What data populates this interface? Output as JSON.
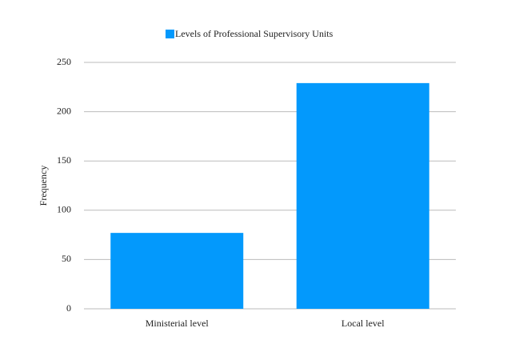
{
  "chart_data": {
    "type": "bar",
    "y_label": "Frequency",
    "categories": [
      "Ministerial level",
      "Local level"
    ],
    "series": [
      {
        "name": "Levels of Professional Supervisory Units",
        "color": "#0399fc",
        "values": [
          77,
          229
        ]
      }
    ],
    "ylim": [
      0,
      250
    ],
    "yticks": [
      0,
      50,
      100,
      150,
      200,
      250
    ],
    "grid": true,
    "legend": "top"
  }
}
